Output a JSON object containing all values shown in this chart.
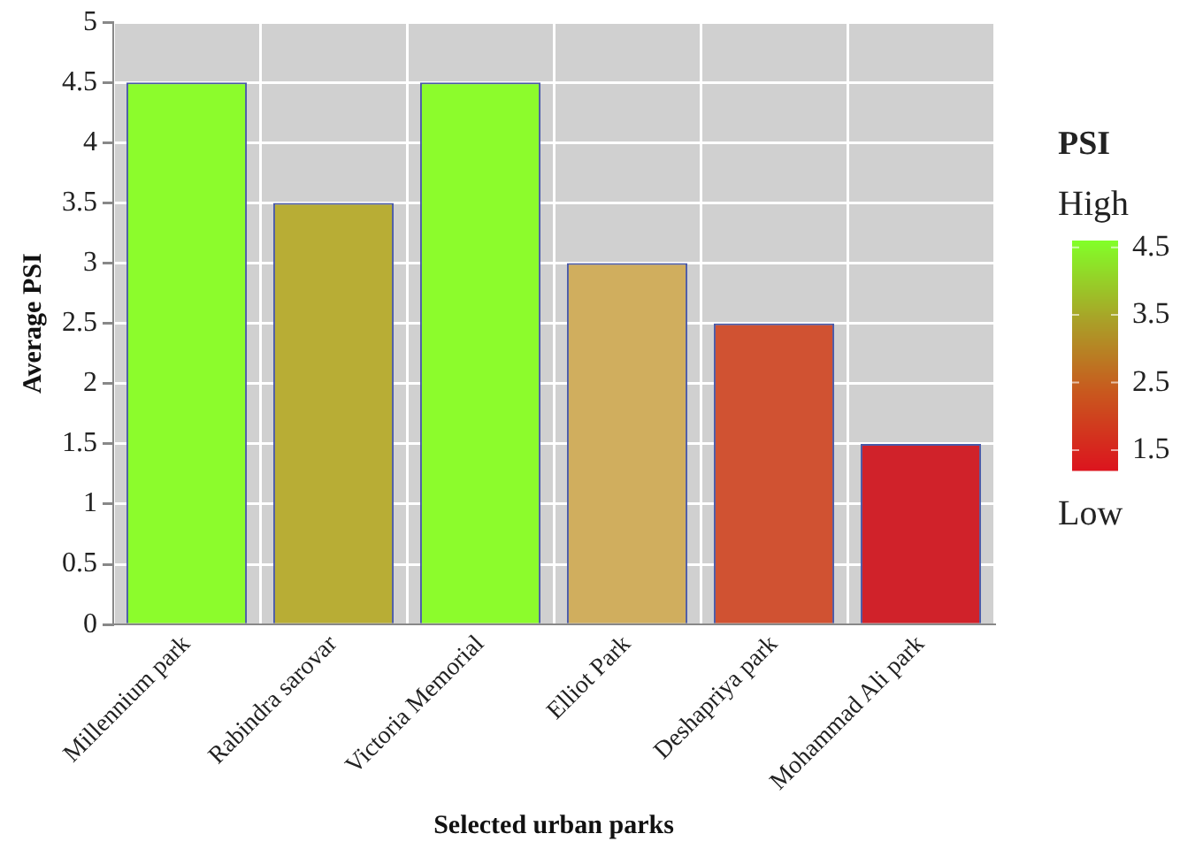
{
  "chart_data": {
    "type": "bar",
    "xlabel": "Selected urban parks",
    "ylabel": "Average PSI",
    "clabel": "PSI",
    "categories": [
      "Millennium park",
      "Rabindra sarovar",
      "Victoria Memorial",
      "Elliot Park",
      "Deshapriya park",
      "Mohammad Ali park"
    ],
    "values": [
      4.5,
      3.5,
      4.5,
      3.0,
      2.5,
      1.5
    ],
    "colors": [
      "#8cfc2c",
      "#b8ad35",
      "#8cfc2c",
      "#d0ae5e",
      "#d05232",
      "#d0222a"
    ],
    "ylim": [
      0,
      5
    ],
    "yticks": [
      0,
      0.5,
      1,
      1.5,
      2,
      2.5,
      3,
      3.5,
      4,
      4.5,
      5
    ],
    "clim": [
      1.2,
      4.6
    ],
    "cticks": [
      4.5,
      3.5,
      2.5,
      1.5
    ],
    "annotations": [
      "High",
      "Low"
    ],
    "grid": true,
    "legend": false
  }
}
